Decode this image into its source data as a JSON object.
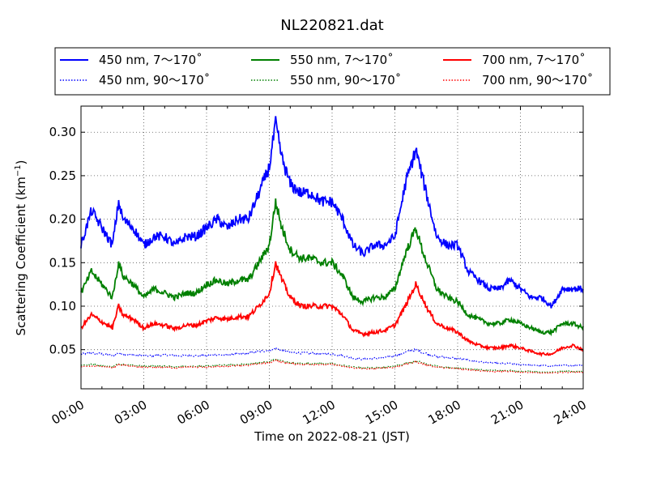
{
  "chart_data": {
    "type": "line",
    "title": "NL220821.dat",
    "xlabel": "Time on 2022-08-21 (JST)",
    "ylabel": "Scattering Coefficient (km",
    "ylabel_sup": "−1",
    "ylabel_close": ")",
    "xlim": [
      0,
      24
    ],
    "ylim": [
      0.005,
      0.33
    ],
    "x_ticks": [
      0,
      3,
      6,
      9,
      12,
      15,
      18,
      21,
      24
    ],
    "x_tick_labels": [
      "00:00",
      "03:00",
      "06:00",
      "09:00",
      "12:00",
      "15:00",
      "18:00",
      "21:00",
      "24:00"
    ],
    "y_ticks": [
      0.05,
      0.1,
      0.15,
      0.2,
      0.25,
      0.3
    ],
    "y_tick_labels": [
      "0.05",
      "0.10",
      "0.15",
      "0.20",
      "0.25",
      "0.30"
    ],
    "grid": true,
    "legend_position": "top-center",
    "x": [
      0,
      0.5,
      1,
      1.5,
      1.8,
      2,
      2.5,
      3,
      3.5,
      4,
      4.5,
      5,
      5.5,
      6,
      6.5,
      7,
      7.5,
      8,
      8.5,
      9,
      9.3,
      9.6,
      10,
      10.5,
      11,
      11.5,
      12,
      12.5,
      13,
      13.5,
      14,
      14.5,
      15,
      15.5,
      16,
      16.3,
      16.6,
      17,
      17.5,
      18,
      18.5,
      19,
      19.5,
      20,
      20.5,
      21,
      21.5,
      22,
      22.5,
      23,
      23.5,
      24
    ],
    "series": [
      {
        "name": "450 nm, 7～170˚",
        "color": "#0000ff",
        "style": "solid",
        "values": [
          0.17,
          0.21,
          0.19,
          0.17,
          0.22,
          0.2,
          0.19,
          0.17,
          0.18,
          0.18,
          0.17,
          0.18,
          0.18,
          0.19,
          0.2,
          0.19,
          0.2,
          0.2,
          0.23,
          0.26,
          0.31,
          0.27,
          0.24,
          0.23,
          0.23,
          0.22,
          0.22,
          0.2,
          0.17,
          0.16,
          0.17,
          0.17,
          0.18,
          0.24,
          0.28,
          0.25,
          0.22,
          0.18,
          0.17,
          0.17,
          0.14,
          0.13,
          0.12,
          0.12,
          0.13,
          0.12,
          0.11,
          0.11,
          0.1,
          0.12,
          0.12,
          0.12
        ]
      },
      {
        "name": "450 nm, 90～170˚",
        "color": "#0000ff",
        "style": "dotted",
        "values": [
          0.045,
          0.046,
          0.045,
          0.043,
          0.046,
          0.045,
          0.044,
          0.043,
          0.043,
          0.044,
          0.043,
          0.043,
          0.043,
          0.043,
          0.044,
          0.044,
          0.045,
          0.046,
          0.048,
          0.049,
          0.051,
          0.049,
          0.047,
          0.046,
          0.046,
          0.045,
          0.045,
          0.043,
          0.04,
          0.039,
          0.04,
          0.041,
          0.043,
          0.047,
          0.05,
          0.047,
          0.045,
          0.042,
          0.041,
          0.04,
          0.038,
          0.036,
          0.035,
          0.034,
          0.034,
          0.033,
          0.032,
          0.032,
          0.031,
          0.032,
          0.032,
          0.032
        ]
      },
      {
        "name": "550 nm, 7～170˚",
        "color": "#008000",
        "style": "solid",
        "values": [
          0.115,
          0.14,
          0.125,
          0.11,
          0.15,
          0.135,
          0.125,
          0.11,
          0.12,
          0.115,
          0.11,
          0.115,
          0.115,
          0.125,
          0.13,
          0.125,
          0.13,
          0.13,
          0.15,
          0.17,
          0.22,
          0.19,
          0.165,
          0.155,
          0.155,
          0.15,
          0.15,
          0.135,
          0.11,
          0.105,
          0.11,
          0.11,
          0.12,
          0.16,
          0.19,
          0.165,
          0.145,
          0.12,
          0.11,
          0.105,
          0.09,
          0.085,
          0.08,
          0.08,
          0.085,
          0.08,
          0.075,
          0.07,
          0.07,
          0.08,
          0.08,
          0.075
        ]
      },
      {
        "name": "550 nm, 90～170˚",
        "color": "#008000",
        "style": "dotted",
        "values": [
          0.032,
          0.033,
          0.032,
          0.03,
          0.034,
          0.033,
          0.032,
          0.031,
          0.031,
          0.031,
          0.03,
          0.031,
          0.031,
          0.031,
          0.032,
          0.032,
          0.033,
          0.033,
          0.035,
          0.036,
          0.039,
          0.037,
          0.035,
          0.034,
          0.034,
          0.034,
          0.034,
          0.032,
          0.03,
          0.029,
          0.029,
          0.03,
          0.031,
          0.034,
          0.037,
          0.035,
          0.033,
          0.031,
          0.03,
          0.029,
          0.028,
          0.027,
          0.026,
          0.026,
          0.026,
          0.025,
          0.025,
          0.024,
          0.024,
          0.025,
          0.025,
          0.025
        ]
      },
      {
        "name": "700 nm, 7～170˚",
        "color": "#ff0000",
        "style": "solid",
        "values": [
          0.075,
          0.09,
          0.082,
          0.075,
          0.1,
          0.09,
          0.085,
          0.075,
          0.08,
          0.078,
          0.074,
          0.078,
          0.078,
          0.083,
          0.087,
          0.085,
          0.088,
          0.088,
          0.1,
          0.115,
          0.15,
          0.13,
          0.11,
          0.1,
          0.1,
          0.1,
          0.1,
          0.09,
          0.072,
          0.068,
          0.07,
          0.072,
          0.078,
          0.1,
          0.125,
          0.11,
          0.095,
          0.08,
          0.075,
          0.07,
          0.06,
          0.055,
          0.052,
          0.052,
          0.055,
          0.052,
          0.048,
          0.045,
          0.045,
          0.052,
          0.055,
          0.05
        ]
      },
      {
        "name": "700 nm, 90～170˚",
        "color": "#ff0000",
        "style": "dotted",
        "values": [
          0.03,
          0.031,
          0.031,
          0.029,
          0.033,
          0.032,
          0.031,
          0.03,
          0.03,
          0.03,
          0.029,
          0.03,
          0.03,
          0.03,
          0.031,
          0.031,
          0.032,
          0.032,
          0.034,
          0.035,
          0.038,
          0.036,
          0.034,
          0.033,
          0.033,
          0.033,
          0.033,
          0.031,
          0.029,
          0.028,
          0.028,
          0.029,
          0.03,
          0.033,
          0.036,
          0.034,
          0.032,
          0.03,
          0.029,
          0.028,
          0.027,
          0.026,
          0.025,
          0.025,
          0.025,
          0.024,
          0.024,
          0.023,
          0.023,
          0.024,
          0.024,
          0.024
        ]
      }
    ]
  }
}
